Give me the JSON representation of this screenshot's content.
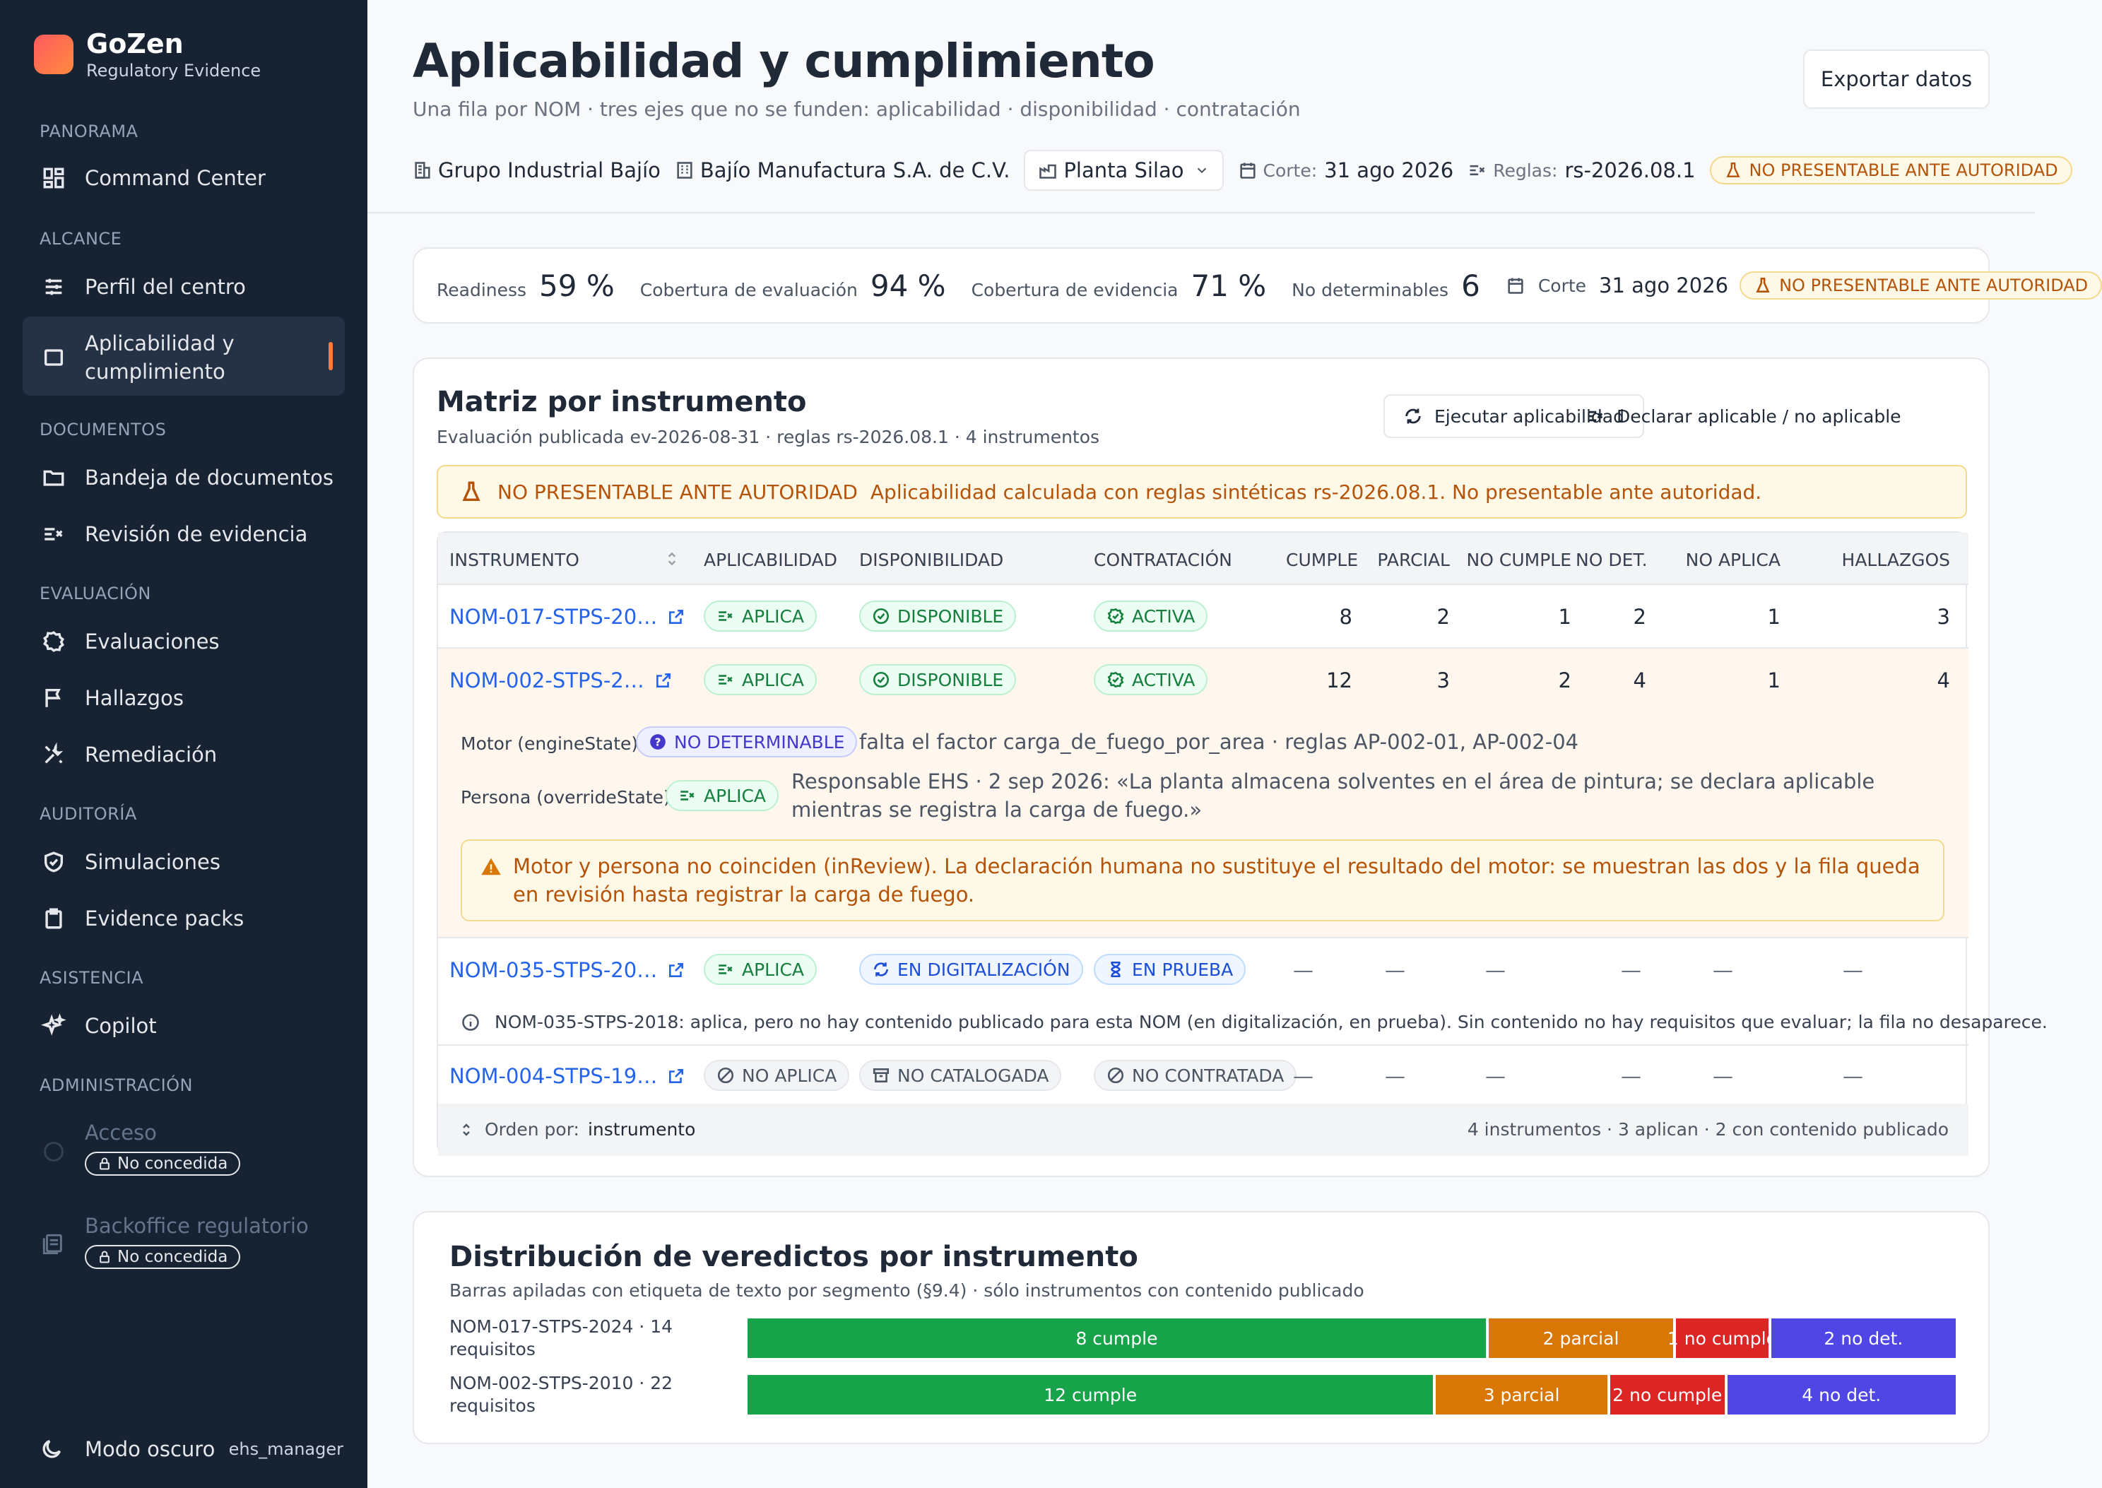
{
  "sidebar": {
    "brand": {
      "name": "GoZen",
      "subtitle": "Regulatory Evidence"
    },
    "sections": {
      "panorama": "PANORAMA",
      "alcance": "ALCANCE",
      "documentos": "DOCUMENTOS",
      "evaluacion": "EVALUACIÓN",
      "auditoria": "AUDITORÍA",
      "asistencia": "ASISTENCIA",
      "administracion": "ADMINISTRACIÓN"
    },
    "items": {
      "command_center": "Command Center",
      "perfil": "Perfil del centro",
      "aplicabilidad_1": "Aplicabilidad y",
      "aplicabilidad_2": "cumplimiento",
      "bandeja": "Bandeja de documentos",
      "revision": "Revisión de evidencia",
      "evaluaciones": "Evaluaciones",
      "hallazgos": "Hallazgos",
      "remediacion": "Remediación",
      "simulaciones": "Simulaciones",
      "evidence_packs": "Evidence packs",
      "copilot": "Copilot",
      "acceso": "Acceso",
      "backoffice": "Backoffice regulatorio",
      "no_concedida": "No concedida"
    },
    "dark_mode": "Modo oscuro",
    "user": "ehs_manager"
  },
  "header": {
    "title": "Aplicabilidad y cumplimiento",
    "subtitle": "Una fila por NOM · tres ejes que no se funden: aplicabilidad · disponibilidad · contratación",
    "export": "Exportar datos",
    "group": "Grupo Industrial Bajío",
    "company": "Bajío Manufactura S.A. de C.V.",
    "plant": "Planta Silao",
    "corte_label": "Corte:",
    "corte_value": "31 ago 2026",
    "reglas_label": "Reglas:",
    "reglas_value": "rs-2026.08.1",
    "warning": "NO PRESENTABLE ANTE AUTORIDAD"
  },
  "stats": {
    "readiness_label": "Readiness",
    "readiness_value": "59 %",
    "cob_eval_label": "Cobertura de evaluación",
    "cob_eval_value": "94 %",
    "cob_evid_label": "Cobertura de evidencia",
    "cob_evid_value": "71 %",
    "nodet_label": "No determinables",
    "nodet_value": "6",
    "corte_label": "Corte",
    "corte_value": "31 ago 2026",
    "warning": "NO PRESENTABLE ANTE AUTORIDAD"
  },
  "matrix": {
    "title": "Matriz por instrumento",
    "subtitle": "Evaluación publicada ev-2026-08-31 · reglas rs-2026.08.1 · 4 instrumentos",
    "btn_run": "Ejecutar aplicabilidad",
    "btn_declare": "Declarar aplicable / no aplicable",
    "banner_bold": "NO PRESENTABLE ANTE AUTORIDAD",
    "banner_text": "Aplicabilidad calculada con reglas sintéticas rs-2026.08.1. No presentable ante autoridad.",
    "columns": [
      "INSTRUMENTO",
      "APLICABILIDAD",
      "DISPONIBILIDAD",
      "CONTRATACIÓN",
      "CUMPLE",
      "PARCIAL",
      "NO CUMPLE",
      "NO DET.",
      "NO APLICA",
      "HALLAZGOS"
    ],
    "rows": [
      {
        "instrument": "NOM-017-STPS-20…",
        "aplic": "APLICA",
        "disp": "DISPONIBLE",
        "contr": "ACTIVA",
        "cumple": "8",
        "parcial": "2",
        "no_cumple": "1",
        "no_det": "2",
        "no_aplica": "1",
        "hallazgos": "3"
      },
      {
        "instrument": "NOM-002-STPS-2…",
        "aplic": "APLICA",
        "disp": "DISPONIBLE",
        "contr": "ACTIVA",
        "cumple": "12",
        "parcial": "3",
        "no_cumple": "2",
        "no_det": "4",
        "no_aplica": "1",
        "hallazgos": "4"
      },
      {
        "instrument": "NOM-035-STPS-20…",
        "aplic": "APLICA",
        "disp": "EN DIGITALIZACIÓN",
        "contr": "EN PRUEBA",
        "cumple": "—",
        "parcial": "—",
        "no_cumple": "—",
        "no_det": "—",
        "no_aplica": "—",
        "hallazgos": "—"
      },
      {
        "instrument": "NOM-004-STPS-19…",
        "aplic": "NO APLICA",
        "disp": "NO CATALOGADA",
        "contr": "NO CONTRATADA",
        "cumple": "—",
        "parcial": "—",
        "no_cumple": "—",
        "no_det": "—",
        "no_aplica": "—",
        "hallazgos": "—"
      }
    ],
    "expand": {
      "motor_label": "Motor (engineState)",
      "motor_pill": "NO DETERMINABLE",
      "motor_text": "falta el factor carga_de_fuego_por_area · reglas AP-002-01, AP-002-04",
      "persona_label": "Persona (overrideState)",
      "persona_pill": "APLICA",
      "persona_text": "Responsable EHS · 2 sep 2026: «La planta almacena solventes en el área de pintura; se declara aplicable mientras se registra la carga de fuego.»",
      "warning": "Motor y persona no coinciden (inReview). La declaración humana no sustituye el resultado del motor: se muestran las dos y la fila queda en revisión hasta registrar la carga de fuego."
    },
    "info_035": "NOM-035-STPS-2018: aplica, pero no hay contenido publicado para esta NOM (en digitalización, en prueba). Sin contenido no hay requisitos que evaluar; la fila no desaparece.",
    "footer_sort_label": "Orden por:",
    "footer_sort_value": "instrumento",
    "footer_summary": "4 instrumentos · 3 aplican · 2 con contenido publicado"
  },
  "distribution": {
    "title": "Distribución de veredictos por instrumento",
    "subtitle": "Barras apiladas con etiqueta de texto por segmento (§9.4) · sólo instrumentos con contenido publicado"
  },
  "chart_data": {
    "type": "bar",
    "stacked": true,
    "orientation": "horizontal",
    "categories": [
      "NOM-017-STPS-2024 · 14 requisitos",
      "NOM-002-STPS-2010 · 22 requisitos"
    ],
    "series": [
      {
        "key": "cumple",
        "values": [
          8,
          12
        ],
        "labels": [
          "8 cumple",
          "12 cumple"
        ],
        "color": "#16a34a"
      },
      {
        "key": "parcial",
        "values": [
          2,
          3
        ],
        "labels": [
          "2 parcial",
          "3 parcial"
        ],
        "color": "#d97706"
      },
      {
        "key": "no_cumple",
        "values": [
          1,
          2
        ],
        "labels": [
          "1 no cumple",
          "2 no cumple"
        ],
        "color": "#dc2626"
      },
      {
        "key": "no_det",
        "values": [
          2,
          4
        ],
        "labels": [
          "2 no det.",
          "4 no det."
        ],
        "color": "#4f46e5"
      }
    ]
  }
}
